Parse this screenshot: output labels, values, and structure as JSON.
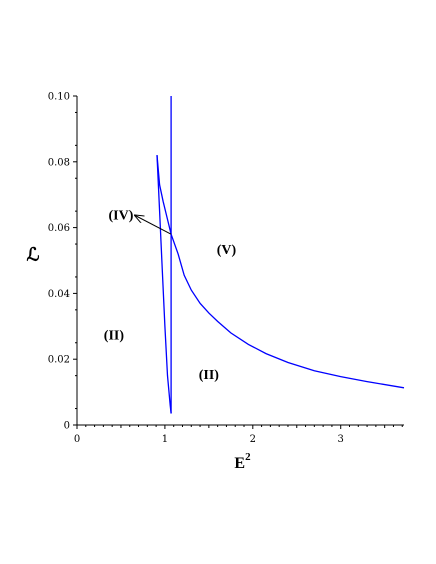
{
  "chart_data": {
    "type": "line",
    "title": "",
    "xlabel": "E",
    "xlabel_superscript": "2",
    "ylabel": "ℒ",
    "xlim": [
      0,
      3.72
    ],
    "ylim": [
      0,
      0.1
    ],
    "x_ticks": [
      0,
      1,
      2,
      3
    ],
    "x_tick_labels": [
      "0",
      "1",
      "2",
      "3"
    ],
    "y_ticks": [
      0,
      0.02,
      0.04,
      0.06,
      0.08,
      0.1
    ],
    "y_tick_labels": [
      "0",
      "0.02",
      "0.04",
      "0.06",
      "0.08",
      "0.10"
    ],
    "grid": false,
    "line_color": "#0000ff",
    "series": [
      {
        "points": [
          [
            0.91,
            0.082
          ],
          [
            0.94,
            0.073
          ],
          [
            0.98,
            0.068
          ],
          [
            1.03,
            0.0625
          ],
          [
            1.07,
            0.058
          ],
          [
            1.15,
            0.052
          ],
          [
            1.22,
            0.0455
          ],
          [
            1.3,
            0.041
          ],
          [
            1.4,
            0.037
          ],
          [
            1.5,
            0.034
          ],
          [
            1.6,
            0.0315
          ],
          [
            1.75,
            0.028
          ],
          [
            1.95,
            0.0245
          ],
          [
            2.15,
            0.0217
          ],
          [
            2.4,
            0.019
          ],
          [
            2.7,
            0.0165
          ],
          [
            3.0,
            0.0147
          ],
          [
            3.3,
            0.0132
          ],
          [
            3.72,
            0.0113
          ]
        ]
      },
      {
        "points": [
          [
            0.91,
            0.082
          ],
          [
            0.94,
            0.065
          ],
          [
            0.97,
            0.047
          ],
          [
            1.0,
            0.03
          ],
          [
            1.03,
            0.015
          ],
          [
            1.06,
            0.006
          ],
          [
            1.07,
            0.0035
          ]
        ]
      },
      {
        "points": [
          [
            1.07,
            0.0035
          ],
          [
            1.07,
            0.1
          ]
        ]
      }
    ],
    "annotations": [
      {
        "text": "(IV)",
        "x": 0.5,
        "y": 0.0625,
        "arrow_to": [
          1.07,
          0.058
        ]
      },
      {
        "text": "(V)",
        "x": 1.7,
        "y": 0.052
      },
      {
        "text": "(II)",
        "x": 0.42,
        "y": 0.026
      },
      {
        "text": "(II)",
        "x": 1.5,
        "y": 0.014
      }
    ]
  }
}
